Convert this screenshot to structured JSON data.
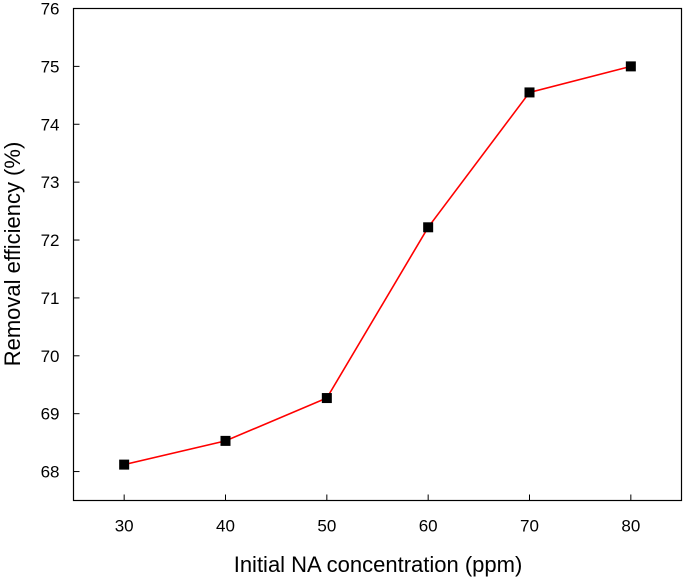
{
  "chart_data": {
    "type": "line",
    "title": "",
    "xlabel": "Initial NA concentration (ppm)",
    "ylabel": "Removal efficiency (%)",
    "x": [
      30,
      40,
      50,
      60,
      70,
      80
    ],
    "series": [
      {
        "values": [
          68.12,
          68.53,
          69.27,
          72.22,
          74.55,
          75.0
        ],
        "color": "#ff0000",
        "marker": "square",
        "marker_color": "#000000"
      }
    ],
    "x_ticks": [
      "30",
      "40",
      "50",
      "60",
      "70",
      "80"
    ],
    "y_ticks": [
      "68",
      "69",
      "70",
      "71",
      "72",
      "73",
      "74",
      "75",
      "76"
    ],
    "xlim": [
      25,
      85
    ],
    "ylim": [
      67.5,
      76
    ],
    "grid": false,
    "legend": "none"
  }
}
